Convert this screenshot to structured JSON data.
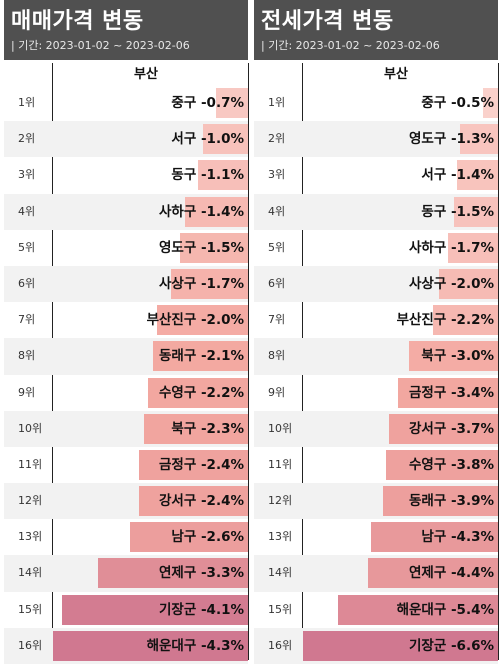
{
  "chart_data": [
    {
      "type": "bar",
      "title": "매매가격 변동",
      "period": "| 기간: 2023-01-02 ~ 2023-02-06",
      "region": "부산",
      "ranks": [
        "1위",
        "2위",
        "3위",
        "4위",
        "5위",
        "6위",
        "7위",
        "8위",
        "9위",
        "10위",
        "11위",
        "12위",
        "13위",
        "14위",
        "15위",
        "16위"
      ],
      "categories": [
        "중구",
        "서구",
        "동구",
        "사하구",
        "영도구",
        "사상구",
        "부산진구",
        "동래구",
        "수영구",
        "북구",
        "금정구",
        "강서구",
        "남구",
        "연제구",
        "기장군",
        "해운대구"
      ],
      "values": [
        -0.7,
        -1.0,
        -1.1,
        -1.4,
        -1.5,
        -1.7,
        -2.0,
        -2.1,
        -2.2,
        -2.3,
        -2.4,
        -2.4,
        -2.6,
        -3.3,
        -4.1,
        -4.3
      ],
      "labels": [
        "중구 -0.7%",
        "서구 -1.0%",
        "동구 -1.1%",
        "사하구 -1.4%",
        "영도구 -1.5%",
        "사상구 -1.7%",
        "부산진구 -2.0%",
        "동래구 -2.1%",
        "수영구 -2.2%",
        "북구 -2.3%",
        "금정구 -2.4%",
        "강서구 -2.4%",
        "남구 -2.6%",
        "연제구 -3.3%",
        "기장군 -4.1%",
        "해운대구 -4.3%"
      ]
    },
    {
      "type": "bar",
      "title": "전세가격 변동",
      "period": "| 기간: 2023-01-02 ~ 2023-02-06",
      "region": "부산",
      "ranks": [
        "1위",
        "2위",
        "3위",
        "4위",
        "5위",
        "6위",
        "7위",
        "8위",
        "9위",
        "10위",
        "11위",
        "12위",
        "13위",
        "14위",
        "15위",
        "16위"
      ],
      "categories": [
        "중구",
        "영도구",
        "서구",
        "동구",
        "사하구",
        "사상구",
        "부산진구",
        "북구",
        "금정구",
        "강서구",
        "수영구",
        "동래구",
        "남구",
        "연제구",
        "해운대구",
        "기장군"
      ],
      "values": [
        -0.5,
        -1.3,
        -1.4,
        -1.5,
        -1.7,
        -2.0,
        -2.2,
        -3.0,
        -3.4,
        -3.7,
        -3.8,
        -3.9,
        -4.3,
        -4.4,
        -5.4,
        -6.6
      ],
      "labels": [
        "중구 -0.5%",
        "영도구 -1.3%",
        "서구 -1.4%",
        "동구 -1.5%",
        "사하구 -1.7%",
        "사상구 -2.0%",
        "부산진구 -2.2%",
        "북구 -3.0%",
        "금정구 -3.4%",
        "강서구 -3.7%",
        "수영구 -3.8%",
        "동래구 -3.9%",
        "남구 -4.3%",
        "연제구 -4.4%",
        "해운대구 -5.4%",
        "기장군 -6.6%"
      ]
    }
  ],
  "colors": {
    "header_bg": "#505050",
    "bar_light": "#fbd8d3",
    "bar_mid": "#f3a8a0",
    "bar_dark": "#d07890",
    "row_shade": "#f2f2f2"
  }
}
